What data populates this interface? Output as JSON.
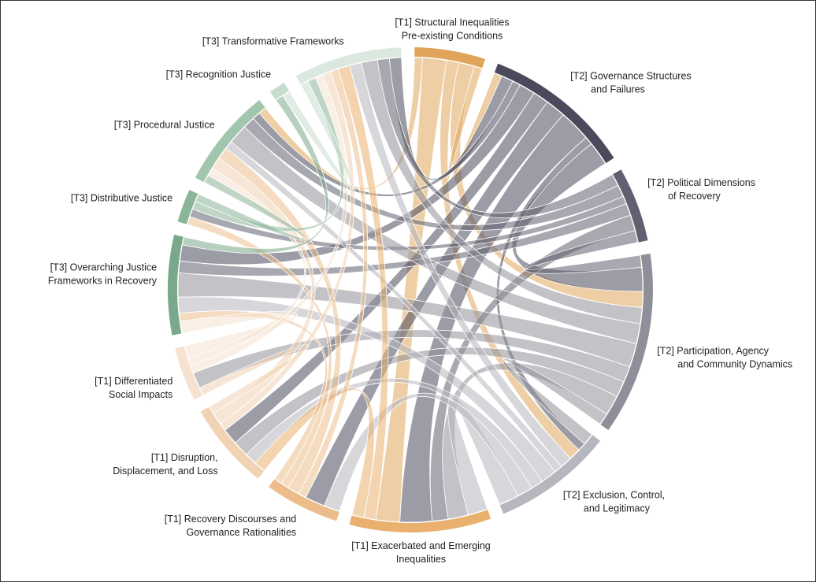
{
  "chart_data": {
    "type": "chord",
    "groups": [
      {
        "label": [
          "[T1] Structural Inequalities",
          "Pre-existing Conditions"
        ],
        "color": "#e0a55a"
      },
      {
        "label": [
          "[T2] Governance Structures",
          "and Failures"
        ],
        "color": "#4b4a5c"
      },
      {
        "label": [
          "[T2] Political Dimensions",
          "of Recovery"
        ],
        "color": "#606070"
      },
      {
        "label": [
          "[T2] Participation, Agency",
          "and Community Dynamics"
        ],
        "color": "#8f8f99"
      },
      {
        "label": [
          "[T2] Exclusion, Control,",
          "and Legitimacy"
        ],
        "color": "#b6b6be"
      },
      {
        "label": [
          "[T1] Exacerbated and Emerging",
          "Inequalities"
        ],
        "color": "#e9b06e"
      },
      {
        "label": [
          "[T1] Recovery Discourses and",
          "Governance Rationalities"
        ],
        "color": "#ecbd8a"
      },
      {
        "label": [
          "[T1] Disruption,",
          "Displacement, and Loss"
        ],
        "color": "#f1d2b2"
      },
      {
        "label": [
          "[T1] Differentiated",
          "Social Impacts"
        ],
        "color": "#f6e2cf"
      },
      {
        "label": [
          "[T3] Overarching Justice",
          "Frameworks in Recovery"
        ],
        "color": "#7aa88b"
      },
      {
        "label": [
          "[T3] Distributive Justice"
        ],
        "color": "#8ab598"
      },
      {
        "label": [
          "[T3] Procedural Justice"
        ],
        "color": "#a2c5ae"
      },
      {
        "label": [
          "[T3] Recognition Justice"
        ],
        "color": "#c6ddce"
      },
      {
        "label": [
          "[T3] Transformative Frameworks"
        ],
        "color": "#dbe8df"
      }
    ],
    "links": [
      {
        "source": 0,
        "target": 5,
        "value": 6
      },
      {
        "source": 0,
        "target": 3,
        "value": 4
      },
      {
        "source": 0,
        "target": 4,
        "value": 3
      },
      {
        "source": 0,
        "target": 11,
        "value": 2
      },
      {
        "source": 0,
        "target": 1,
        "value": 2
      },
      {
        "source": 1,
        "target": 5,
        "value": 8
      },
      {
        "source": 1,
        "target": 3,
        "value": 6
      },
      {
        "source": 1,
        "target": 6,
        "value": 5
      },
      {
        "source": 1,
        "target": 7,
        "value": 4
      },
      {
        "source": 1,
        "target": 9,
        "value": 4
      },
      {
        "source": 1,
        "target": 13,
        "value": 3
      },
      {
        "source": 1,
        "target": 11,
        "value": 2
      },
      {
        "source": 1,
        "target": 4,
        "value": 2
      },
      {
        "source": 2,
        "target": 5,
        "value": 4
      },
      {
        "source": 2,
        "target": 9,
        "value": 3
      },
      {
        "source": 2,
        "target": 10,
        "value": 2
      },
      {
        "source": 2,
        "target": 11,
        "value": 3
      },
      {
        "source": 2,
        "target": 13,
        "value": 3
      },
      {
        "source": 2,
        "target": 3,
        "value": 3
      },
      {
        "source": 3,
        "target": 9,
        "value": 6
      },
      {
        "source": 3,
        "target": 11,
        "value": 5
      },
      {
        "source": 3,
        "target": 13,
        "value": 4
      },
      {
        "source": 3,
        "target": 8,
        "value": 4
      },
      {
        "source": 3,
        "target": 7,
        "value": 4
      },
      {
        "source": 3,
        "target": 5,
        "value": 5
      },
      {
        "source": 3,
        "target": 4,
        "value": 3
      },
      {
        "source": 4,
        "target": 5,
        "value": 5
      },
      {
        "source": 4,
        "target": 6,
        "value": 4
      },
      {
        "source": 4,
        "target": 9,
        "value": 4
      },
      {
        "source": 4,
        "target": 7,
        "value": 3
      },
      {
        "source": 4,
        "target": 13,
        "value": 3
      },
      {
        "source": 4,
        "target": 11,
        "value": 2
      },
      {
        "source": 5,
        "target": 7,
        "value": 3
      },
      {
        "source": 5,
        "target": 13,
        "value": 3
      },
      {
        "source": 6,
        "target": 11,
        "value": 3
      },
      {
        "source": 6,
        "target": 9,
        "value": 2
      },
      {
        "source": 6,
        "target": 13,
        "value": 2
      },
      {
        "source": 6,
        "target": 10,
        "value": 2
      },
      {
        "source": 7,
        "target": 11,
        "value": 3
      },
      {
        "source": 7,
        "target": 8,
        "value": 2
      },
      {
        "source": 7,
        "target": 13,
        "value": 2
      },
      {
        "source": 8,
        "target": 9,
        "value": 3
      },
      {
        "source": 8,
        "target": 11,
        "value": 2
      },
      {
        "source": 8,
        "target": 13,
        "value": 2
      },
      {
        "source": 9,
        "target": 12,
        "value": 2
      },
      {
        "source": 10,
        "target": 13,
        "value": 2
      },
      {
        "source": 10,
        "target": 11,
        "value": 2
      },
      {
        "source": 12,
        "target": 13,
        "value": 2
      }
    ]
  }
}
